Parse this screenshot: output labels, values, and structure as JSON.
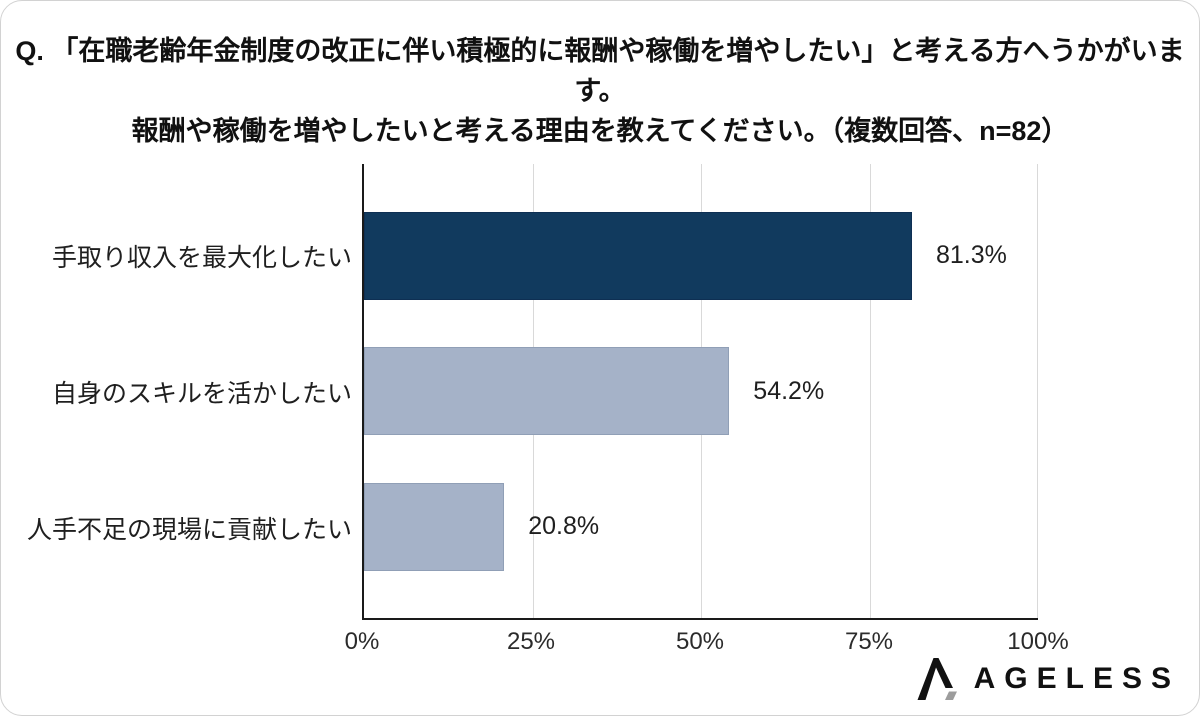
{
  "title": {
    "line1": "Q. 「在職老齢年金制度の改正に伴い積極的に報酬や稼働を増やしたい」と考える方へうかがいます。",
    "line2": "報酬や稼働を増やしたいと考える理由を教えてください。（複数回答、n=82）"
  },
  "chart_data": {
    "type": "bar",
    "orientation": "horizontal",
    "categories": [
      "手取り収入を最大化したい",
      "自身のスキルを活かしたい",
      "人手不足の現場に貢献したい"
    ],
    "values": [
      81.3,
      54.2,
      20.8
    ],
    "value_labels": [
      "81.3%",
      "54.2%",
      "20.8%"
    ],
    "x_ticks": [
      "0%",
      "25%",
      "50%",
      "75%",
      "100%"
    ],
    "x_tick_positions": [
      0,
      25,
      50,
      75,
      100
    ],
    "xlim": [
      0,
      100
    ],
    "bar_colors": [
      "#113a5e",
      "#a5b2c8",
      "#a5b2c8"
    ],
    "grid": true,
    "legend": false,
    "n": 82
  },
  "colors": {
    "bar_primary": "#113a5e",
    "bar_secondary": "#a5b2c8",
    "gridline": "#d9d9d9",
    "axis": "#1a1a1a",
    "text": "#1a1a1a"
  },
  "logo": {
    "brand": "AGELESS",
    "icon": "ageless-caret-icon"
  }
}
